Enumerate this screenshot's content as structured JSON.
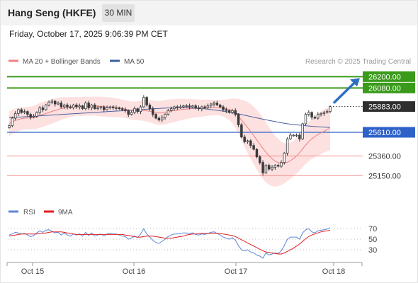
{
  "header": {
    "instrument": "Hang Seng (HKFE)",
    "timeframe": "30 MIN",
    "datetime": "Friday, October 17, 2025 9:06:39 PM CET"
  },
  "legend": [
    {
      "label": "MA 20 + Bollinger Bands",
      "color": "#f08080"
    },
    {
      "label": "MA 50",
      "color": "#3a5fa0"
    }
  ],
  "credit": "Research © 2025 Trading Central",
  "colors": {
    "up_candle": "#3a3a3a",
    "down_candle": "#3a3a3a",
    "resistance": "#3a9a1a",
    "support": "#2f62c8",
    "minor_level": "#f28e8e",
    "current_price": "#2a2a2a",
    "band_fill": "#fde0e0",
    "rsi": "#5b86d8",
    "rsi_ma": "#e01e1e",
    "arrow": "#2d6fc2"
  },
  "chart_data": [
    {
      "type": "candlestick",
      "title": "",
      "x_tick_labels": [
        "Oct 15",
        "Oct 16",
        "Oct 17",
        "Oct 18"
      ],
      "levels": [
        {
          "value": 26200,
          "label": "26200.00",
          "kind": "resistance"
        },
        {
          "value": 26080,
          "label": "26080.00",
          "kind": "resistance"
        },
        {
          "value": 25883,
          "label": "25883.00",
          "kind": "current"
        },
        {
          "value": 25610,
          "label": "25610.00",
          "kind": "support"
        },
        {
          "value": 25360,
          "label": "25360.00",
          "kind": "minor"
        },
        {
          "value": 25150,
          "label": "25150.00",
          "kind": "minor"
        }
      ],
      "ylim": [
        24950,
        26300
      ],
      "close": [
        25680,
        25760,
        25810,
        25850,
        25820,
        25830,
        25800,
        25770,
        25780,
        25820,
        25870,
        25850,
        25900,
        25930,
        25940,
        25910,
        25920,
        25880,
        25900,
        25880,
        25870,
        25900,
        25880,
        25890,
        25860,
        25920,
        25870,
        25900,
        25860,
        25870,
        25880,
        25850,
        25870,
        25880,
        25870,
        25870,
        25860,
        25850,
        25840,
        25800,
        25820,
        25860,
        25830,
        25880,
        25980,
        25900,
        25860,
        25800,
        25760,
        25740,
        25770,
        25800,
        25840,
        25860,
        25880,
        25870,
        25880,
        25890,
        25890,
        25880,
        25890,
        25870,
        25860,
        25880,
        25870,
        25890,
        25910,
        25920,
        25900,
        25880,
        25850,
        25840,
        25820,
        25840,
        25800,
        25690,
        25560,
        25510,
        25520,
        25470,
        25430,
        25350,
        25290,
        25180,
        25260,
        25220,
        25240,
        25260,
        25250,
        25290,
        25390,
        25540,
        25580,
        25580,
        25580,
        25540,
        25700,
        25800,
        25820,
        25770,
        25760,
        25800,
        25810,
        25820,
        25830,
        25883
      ],
      "ma20": [
        25700,
        25720,
        25735,
        25745,
        25755,
        25760,
        25762,
        25762,
        25765,
        25775,
        25790,
        25800,
        25810,
        25820,
        25832,
        25842,
        25852,
        25862,
        25868,
        25872,
        25878,
        25882,
        25884,
        25885,
        25885,
        25886,
        25886,
        25888,
        25888,
        25887,
        25884,
        25880,
        25878,
        25876,
        25874,
        25872,
        25868,
        25862,
        25855,
        25848,
        25840,
        25838,
        25838,
        25840,
        25842,
        25838,
        25833,
        25825,
        25818,
        25815,
        25818,
        25822,
        25830,
        25836,
        25840,
        25845,
        25850,
        25854,
        25857,
        25860,
        25862,
        25864,
        25865,
        25866,
        25868,
        25870,
        25872,
        25873,
        25872,
        25870,
        25866,
        25860,
        25852,
        25838,
        25812,
        25780,
        25740,
        25700,
        25660,
        25620,
        25575,
        25530,
        25485,
        25440,
        25398,
        25360,
        25330,
        25305,
        25290,
        25282,
        25282,
        25292,
        25310,
        25330,
        25360,
        25395,
        25435,
        25475,
        25510,
        25540,
        25565,
        25585,
        25605,
        25622,
        25638,
        25652
      ],
      "ma50": [
        25765,
        25767,
        25769,
        25771,
        25773,
        25775,
        25777,
        25779,
        25781,
        25783,
        25785,
        25787,
        25789,
        25791,
        25793,
        25795,
        25797,
        25799,
        25801,
        25803,
        25805,
        25807,
        25809,
        25811,
        25813,
        25815,
        25817,
        25819,
        25821,
        25823,
        25825,
        25827,
        25829,
        25831,
        25833,
        25835,
        25837,
        25839,
        25841,
        25843,
        25845,
        25847,
        25849,
        25851,
        25853,
        25855,
        25857,
        25859,
        25861,
        25863,
        25865,
        25867,
        25868,
        25869,
        25870,
        25871,
        25871,
        25871,
        25870,
        25869,
        25867,
        25865,
        25863,
        25861,
        25858,
        25855,
        25851,
        25847,
        25843,
        25839,
        25834,
        25829,
        25823,
        25817,
        25811,
        25805,
        25798,
        25791,
        25784,
        25777,
        25770,
        25763,
        25756,
        25749,
        25743,
        25736,
        25730,
        25724,
        25717,
        25711,
        25706,
        25701,
        25696,
        25692,
        25689,
        25686,
        25683,
        25680,
        25677,
        25674,
        25671,
        25669,
        25667,
        25665,
        25663,
        25661
      ],
      "band_halfwidth": [
        130,
        128,
        125,
        122,
        120,
        118,
        118,
        120,
        125,
        128,
        132,
        132,
        132,
        130,
        128,
        126,
        124,
        120,
        115,
        110,
        107,
        104,
        100,
        100,
        100,
        100,
        100,
        100,
        101,
        102,
        104,
        105,
        105,
        104,
        102,
        100,
        97,
        95,
        94,
        95,
        96,
        98,
        100,
        105,
        110,
        115,
        118,
        120,
        123,
        126,
        128,
        128,
        127,
        125,
        122,
        118,
        114,
        110,
        106,
        102,
        98,
        95,
        92,
        90,
        88,
        86,
        84,
        82,
        82,
        84,
        88,
        98,
        112,
        130,
        155,
        185,
        215,
        245,
        270,
        290,
        305,
        318,
        325,
        325,
        318,
        305,
        290,
        270,
        250,
        230,
        212,
        200,
        192,
        188,
        188,
        190,
        195,
        200,
        206,
        212,
        218,
        223,
        226,
        228,
        229,
        229
      ]
    },
    {
      "type": "line",
      "title": "",
      "series": [
        {
          "name": "RSI",
          "values": [
            58,
            60,
            63,
            62,
            60,
            61,
            58,
            55,
            57,
            62,
            66,
            63,
            67,
            68,
            65,
            62,
            63,
            58,
            62,
            58,
            56,
            60,
            58,
            60,
            56,
            63,
            57,
            62,
            56,
            58,
            60,
            56,
            60,
            61,
            60,
            60,
            58,
            56,
            55,
            50,
            52,
            56,
            53,
            60,
            70,
            60,
            54,
            48,
            44,
            42,
            46,
            50,
            55,
            58,
            60,
            60,
            61,
            62,
            62,
            61,
            62,
            59,
            58,
            60,
            59,
            61,
            63,
            64,
            61,
            58,
            54,
            52,
            50,
            53,
            48,
            38,
            30,
            28,
            30,
            26,
            24,
            20,
            18,
            14,
            24,
            20,
            22,
            24,
            23,
            28,
            38,
            50,
            54,
            54,
            54,
            50,
            62,
            68,
            70,
            64,
            62,
            66,
            67,
            68,
            69,
            72
          ]
        },
        {
          "name": "9MA",
          "values": [
            56,
            57,
            58,
            59,
            60,
            60,
            60,
            60,
            60,
            60,
            61,
            61,
            62,
            63,
            64,
            64,
            64,
            64,
            63,
            62,
            61,
            60,
            59,
            59,
            59,
            59,
            59,
            59,
            59,
            59,
            59,
            59,
            59,
            59,
            59,
            59,
            59,
            59,
            58,
            57,
            56,
            55,
            54,
            54,
            55,
            56,
            56,
            56,
            55,
            54,
            53,
            52,
            52,
            52,
            53,
            54,
            55,
            56,
            58,
            59,
            60,
            60,
            61,
            61,
            61,
            61,
            61,
            61,
            61,
            61,
            60,
            59,
            58,
            57,
            55,
            52,
            49,
            46,
            43,
            40,
            37,
            34,
            31,
            28,
            26,
            25,
            24,
            23,
            22,
            22,
            24,
            27,
            30,
            33,
            37,
            41,
            46,
            51,
            55,
            58,
            60,
            62,
            64,
            65,
            66,
            67
          ]
        }
      ],
      "y_ticks": [
        70,
        50,
        30
      ],
      "ylim": [
        10,
        85
      ]
    }
  ]
}
